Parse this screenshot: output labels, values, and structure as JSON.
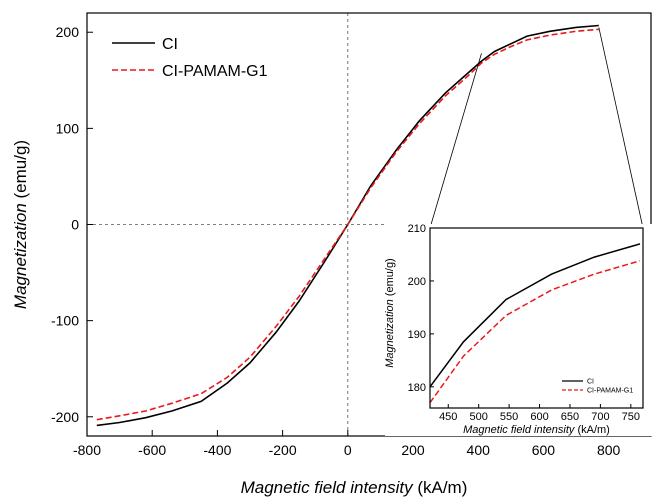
{
  "chart_data": [
    {
      "type": "line",
      "xlabel": "Magnetic field intensity",
      "xlabel_unit": "(kA/m)",
      "ylabel": "Magnetization",
      "ylabel_unit": "(emu/g)",
      "xlim": [
        -800,
        930
      ],
      "ylim": [
        -220,
        220
      ],
      "xticks": [
        -800,
        -600,
        -400,
        -200,
        0,
        200,
        400,
        600,
        800
      ],
      "yticks": [
        -200,
        -100,
        0,
        100,
        200
      ],
      "grid": false,
      "legend": "top-left",
      "zero_crosshair": true,
      "series": [
        {
          "name": "CI",
          "color": "#000000",
          "style": "solid",
          "x": [
            -770,
            -700,
            -620,
            -540,
            -450,
            -370,
            -300,
            -220,
            -150,
            -70,
            0,
            70,
            150,
            220,
            300,
            370,
            410,
            450,
            500,
            550,
            620,
            700,
            770
          ],
          "y": [
            -209,
            -206,
            -201,
            -194,
            -184,
            -165,
            -144,
            -112,
            -80,
            -38,
            0,
            40,
            78,
            108,
            137,
            158,
            170,
            180,
            188,
            196,
            201,
            205,
            207
          ]
        },
        {
          "name": "CI-PAMAM-G1",
          "color": "#e8191c",
          "style": "dashed",
          "x": [
            -770,
            -700,
            -620,
            -540,
            -450,
            -370,
            -300,
            -220,
            -150,
            -70,
            0,
            70,
            150,
            220,
            300,
            370,
            410,
            450,
            500,
            550,
            620,
            700,
            770
          ],
          "y": [
            -203,
            -199,
            -194,
            -186,
            -176,
            -159,
            -138,
            -106,
            -75,
            -35,
            0,
            38,
            76,
            105,
            134,
            155,
            168,
            177,
            185,
            192,
            197,
            201,
            203
          ]
        }
      ]
    },
    {
      "type": "line",
      "position": "inset-bottom-right",
      "xlabel": "Magnetic field intensity",
      "xlabel_unit": "(kA/m)",
      "ylabel": "Magnetization",
      "ylabel_unit": "(emu/g)",
      "xlim": [
        420,
        770
      ],
      "ylim": [
        176,
        210
      ],
      "xticks": [
        450,
        500,
        550,
        600,
        650,
        700,
        750
      ],
      "yticks": [
        180,
        190,
        200,
        210
      ],
      "legend": "bottom-right",
      "series": [
        {
          "name": "CI",
          "color": "#000000",
          "style": "solid",
          "x": [
            420,
            475,
            545,
            620,
            690,
            765
          ],
          "y": [
            180,
            188.5,
            196.5,
            201.3,
            204.5,
            207
          ]
        },
        {
          "name": "CI-PAMAM-G1",
          "color": "#e8191c",
          "style": "dashed",
          "x": [
            420,
            475,
            545,
            620,
            690,
            765
          ],
          "y": [
            177,
            185.8,
            193.5,
            198.3,
            201.3,
            203.8
          ]
        }
      ]
    }
  ]
}
